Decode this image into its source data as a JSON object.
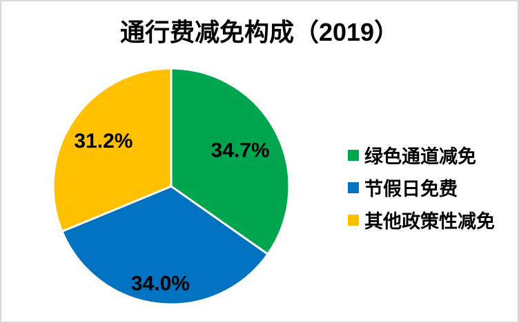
{
  "title": "通行费减免构成（2019）",
  "frame": {
    "background_color": "#ffffff",
    "border_color": "#d9d9d9"
  },
  "chart_data": {
    "type": "pie",
    "title": "通行费减免构成（2019）",
    "start_angle_deg": 0,
    "direction": "clockwise",
    "legend_position": "right",
    "grid": false,
    "slices": [
      {
        "label": "绿色通道减免",
        "value": 34.7,
        "display": "34.7%",
        "color": "#00a64f"
      },
      {
        "label": "节假日免费",
        "value": 34.0,
        "display": "34.0%",
        "color": "#0072c0"
      },
      {
        "label": "其他政策性减免",
        "value": 31.2,
        "display": "31.2%",
        "color": "#ffc000"
      }
    ]
  }
}
